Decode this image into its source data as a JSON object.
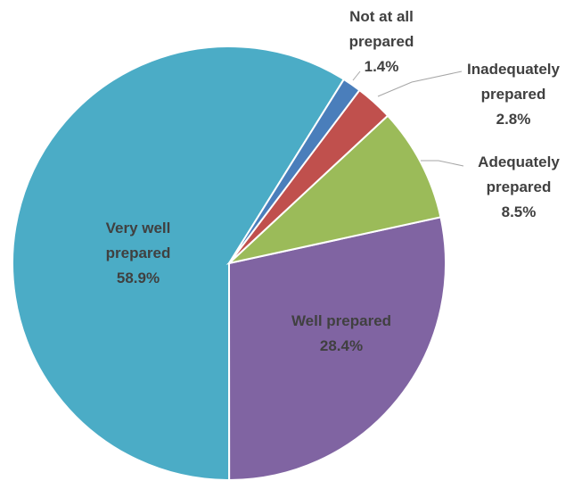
{
  "chart_data": {
    "type": "pie",
    "categories": [
      "Not at all prepared",
      "Inadequately prepared",
      "Adequately prepared",
      "Well prepared",
      "Very well prepared"
    ],
    "values": [
      1.4,
      2.8,
      8.5,
      28.4,
      58.9
    ],
    "value_labels": [
      "1.4%",
      "2.8%",
      "8.5%",
      "28.4%",
      "58.9%"
    ],
    "colors": [
      "#4a7ebb",
      "#c0504d",
      "#9bbb59",
      "#8064a2",
      "#4bacc6"
    ]
  }
}
